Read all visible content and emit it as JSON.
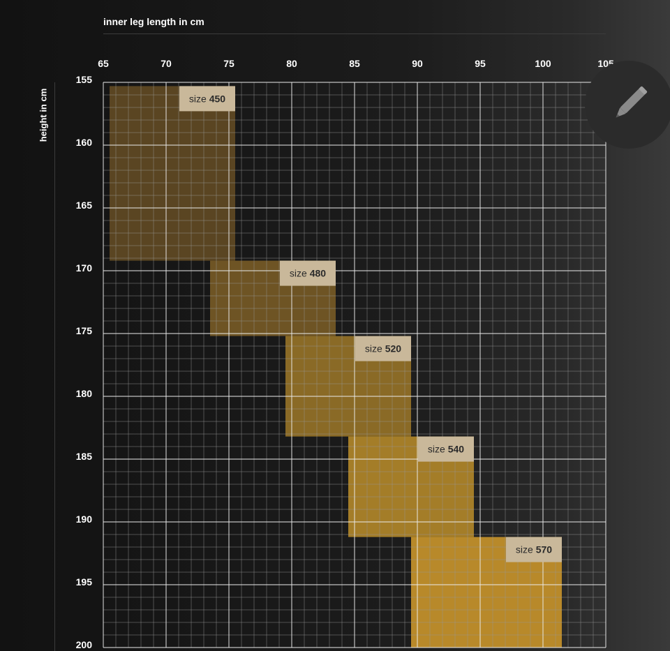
{
  "chart_data": {
    "type": "heatmap",
    "xlabel": "inner leg length in cm",
    "ylabel": "height in cm",
    "x_ticks": [
      65,
      70,
      75,
      80,
      85,
      90,
      95,
      100,
      105
    ],
    "y_ticks": [
      155,
      160,
      165,
      170,
      175,
      180,
      185,
      190,
      195,
      200
    ],
    "xlim": [
      65,
      105
    ],
    "ylim": [
      155,
      200
    ],
    "grid": true,
    "regions": [
      {
        "label_prefix": "size",
        "label_value": "450",
        "x_range": [
          65.5,
          75.5
        ],
        "y_range": [
          155.3,
          169.2
        ],
        "color": "#5a4522"
      },
      {
        "label_prefix": "size",
        "label_value": "480",
        "x_range": [
          73.5,
          83.5
        ],
        "y_range": [
          169.2,
          175.2
        ],
        "color": "#6e5424"
      },
      {
        "label_prefix": "size",
        "label_value": "520",
        "x_range": [
          79.5,
          89.5
        ],
        "y_range": [
          175.2,
          183.2
        ],
        "color": "#8a6a26"
      },
      {
        "label_prefix": "size",
        "label_value": "540",
        "x_range": [
          84.5,
          94.5
        ],
        "y_range": [
          183.2,
          191.2
        ],
        "color": "#a47d28"
      },
      {
        "label_prefix": "size",
        "label_value": "570",
        "x_range": [
          89.5,
          101.5
        ],
        "y_range": [
          191.2,
          200
        ],
        "color": "#b8892a"
      }
    ]
  },
  "toolbar": {
    "edit_icon": "pencil-icon"
  }
}
